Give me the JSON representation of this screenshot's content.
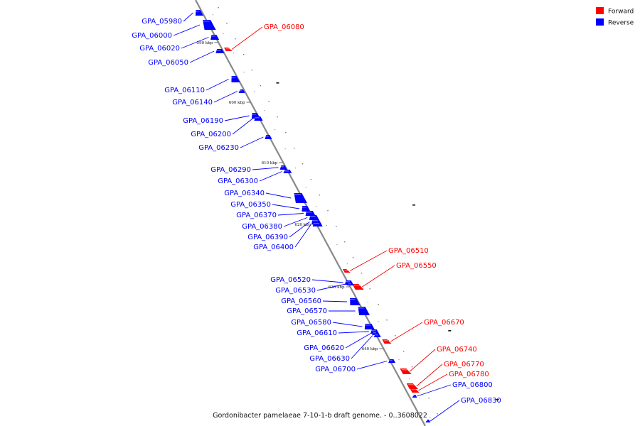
{
  "caption": "Gordonibacter pamelaeae 7-10-1-b draft genome. - 0..3608022",
  "legend": [
    {
      "label": "Forward",
      "color": "#ff0000"
    },
    {
      "label": "Reverse",
      "color": "#0000ff"
    }
  ],
  "colors": {
    "forward": "#ff0000",
    "reverse": "#0000ff",
    "backbone": "#888888"
  },
  "ticks": [
    "590 kbp",
    "600 kbp",
    "610 kbp",
    "620 kbp",
    "630 kbp",
    "640 kbp"
  ],
  "genes": [
    {
      "name": "GPA_05980",
      "strand": "reverse"
    },
    {
      "name": "GPA_06000",
      "strand": "reverse"
    },
    {
      "name": "GPA_06020",
      "strand": "reverse"
    },
    {
      "name": "GPA_06050",
      "strand": "reverse"
    },
    {
      "name": "GPA_06080",
      "strand": "forward"
    },
    {
      "name": "GPA_06110",
      "strand": "reverse"
    },
    {
      "name": "GPA_06140",
      "strand": "reverse"
    },
    {
      "name": "GPA_06190",
      "strand": "reverse"
    },
    {
      "name": "GPA_06200",
      "strand": "reverse"
    },
    {
      "name": "GPA_06230",
      "strand": "reverse"
    },
    {
      "name": "GPA_06290",
      "strand": "reverse"
    },
    {
      "name": "GPA_06300",
      "strand": "reverse"
    },
    {
      "name": "GPA_06340",
      "strand": "reverse"
    },
    {
      "name": "GPA_06350",
      "strand": "reverse"
    },
    {
      "name": "GPA_06370",
      "strand": "reverse"
    },
    {
      "name": "GPA_06380",
      "strand": "reverse"
    },
    {
      "name": "GPA_06390",
      "strand": "reverse"
    },
    {
      "name": "GPA_06400",
      "strand": "reverse"
    },
    {
      "name": "GPA_06510",
      "strand": "forward"
    },
    {
      "name": "GPA_06550",
      "strand": "forward"
    },
    {
      "name": "GPA_06520",
      "strand": "reverse"
    },
    {
      "name": "GPA_06530",
      "strand": "reverse"
    },
    {
      "name": "GPA_06560",
      "strand": "reverse"
    },
    {
      "name": "GPA_06570",
      "strand": "reverse"
    },
    {
      "name": "GPA_06580",
      "strand": "reverse"
    },
    {
      "name": "GPA_06610",
      "strand": "reverse"
    },
    {
      "name": "GPA_06670",
      "strand": "forward"
    },
    {
      "name": "GPA_06620",
      "strand": "reverse"
    },
    {
      "name": "GPA_06630",
      "strand": "reverse"
    },
    {
      "name": "GPA_06700",
      "strand": "reverse"
    },
    {
      "name": "GPA_06740",
      "strand": "forward"
    },
    {
      "name": "GPA_06770",
      "strand": "forward"
    },
    {
      "name": "GPA_06780",
      "strand": "forward"
    },
    {
      "name": "GPA_06800",
      "strand": "reverse"
    },
    {
      "name": "GPA_06830",
      "strand": "reverse"
    }
  ]
}
